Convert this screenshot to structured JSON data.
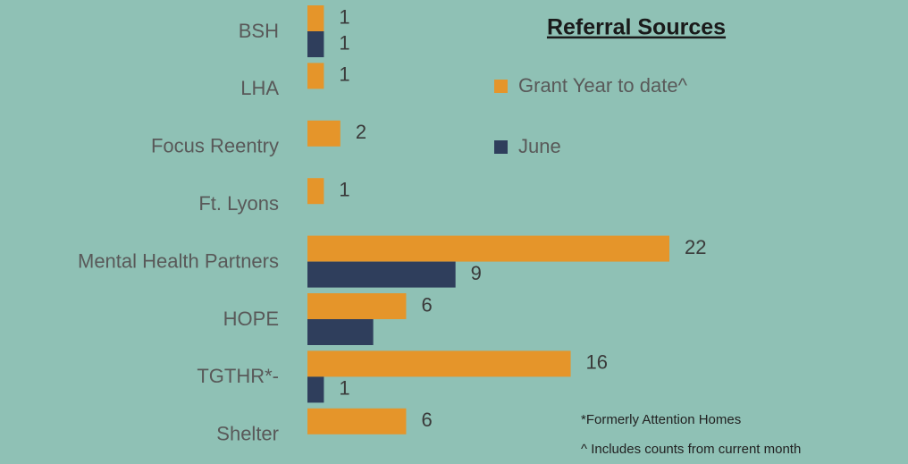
{
  "chart_data": {
    "type": "barh",
    "title": "Referral Sources",
    "categories": [
      "BSH",
      "LHA",
      "Focus Reentry",
      "Ft. Lyons",
      "Mental Health Partners",
      "HOPE",
      "TGTHR*-",
      "Shelter"
    ],
    "series": [
      {
        "name": "Grant Year to date^",
        "color": "#e5952a",
        "values": [
          1,
          1,
          2,
          1,
          22,
          6,
          16,
          6
        ]
      },
      {
        "name": "June",
        "color": "#2f3e5c",
        "values": [
          1,
          null,
          null,
          null,
          9,
          4,
          1,
          null
        ],
        "value_labels": [
          "1",
          null,
          null,
          null,
          "9",
          null,
          "1",
          null
        ]
      }
    ],
    "xlim": [
      0,
      22
    ],
    "annotations": [
      "*Formerly Attention Homes",
      "^ Includes counts from current month"
    ]
  }
}
